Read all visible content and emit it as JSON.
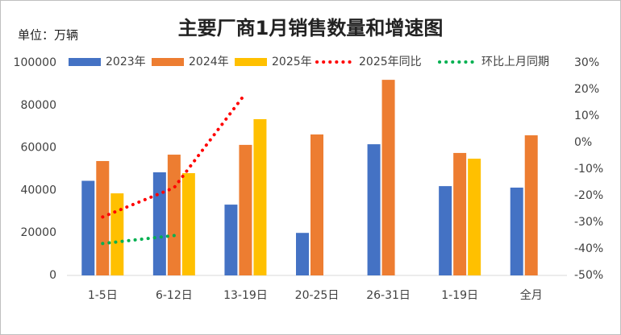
{
  "chart_data": {
    "type": "bar",
    "title": "主要厂商1月销售数量和增速图",
    "subtitle": "单位：万辆",
    "categories": [
      "1-5日",
      "6-12日",
      "13-19日",
      "20-25日",
      "26-31日",
      "1-19日",
      "全月"
    ],
    "series": [
      {
        "name": "2023年",
        "color": "#4472c4",
        "values": [
          44500,
          48500,
          33300,
          20000,
          61700,
          42000,
          41300
        ]
      },
      {
        "name": "2024年",
        "color": "#ed7d31",
        "values": [
          53800,
          56800,
          61400,
          66300,
          92000,
          57600,
          65900
        ]
      },
      {
        "name": "2025年",
        "color": "#ffc000",
        "values": [
          38600,
          48100,
          73500,
          null,
          null,
          54900,
          null
        ]
      },
      {
        "name": "2025年同比",
        "type": "line",
        "axis": "y2",
        "color": "#ff0000",
        "values": [
          -28,
          -17,
          18.5,
          null,
          null,
          null,
          null
        ]
      },
      {
        "name": "环比上月同期",
        "type": "line",
        "axis": "y2",
        "color": "#00b050",
        "values": [
          -38,
          -35,
          null,
          null,
          null,
          null,
          null
        ]
      }
    ],
    "ylim": [
      0,
      100000
    ],
    "yticks": [
      0,
      20000,
      40000,
      60000,
      80000,
      100000
    ],
    "y2lim": [
      -50,
      30
    ],
    "y2ticks": [
      {
        "value": -50,
        "label": "-50%"
      },
      {
        "value": -40,
        "label": "-40%"
      },
      {
        "value": -30,
        "label": "-30%"
      },
      {
        "value": -20,
        "label": "-20%"
      },
      {
        "value": -10,
        "label": "-10%"
      },
      {
        "value": 0,
        "label": "0%"
      },
      {
        "value": 10,
        "label": "10%"
      },
      {
        "value": 20,
        "label": "20%"
      },
      {
        "value": 30,
        "label": "30%"
      }
    ]
  }
}
